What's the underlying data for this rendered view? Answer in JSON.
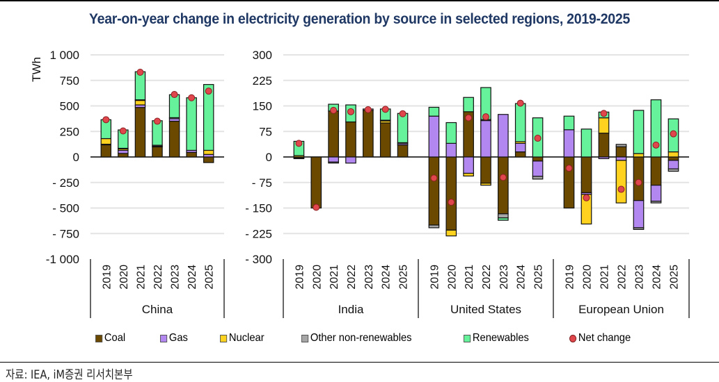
{
  "title": "Year-on-year change in electricity generation by source in selected regions, 2019-2025",
  "source": "자료: IEA, iM증권 리서치본부",
  "colors": {
    "Coal": "#6b4a00",
    "Gas": "#b387f0",
    "Nuclear": "#ffd21f",
    "Other non-renewables": "#a6a6a6",
    "Renewables": "#66f29a",
    "Net change": "#e0474c",
    "title": "#1f3864"
  },
  "legend": [
    {
      "label": "Coal",
      "key": "Coal",
      "shape": "square"
    },
    {
      "label": "Gas",
      "key": "Gas",
      "shape": "square"
    },
    {
      "label": "Nuclear",
      "key": "Nuclear",
      "shape": "square"
    },
    {
      "label": "Other non-renewables",
      "key": "Other non-renewables",
      "shape": "square"
    },
    {
      "label": "Renewables",
      "key": "Renewables",
      "shape": "square"
    },
    {
      "label": "Net change",
      "key": "Net change",
      "shape": "dot"
    }
  ],
  "chart_data": [
    {
      "type": "bar",
      "stacked": true,
      "panel": "left",
      "ylabel": "TWh",
      "ylim": [
        -1000,
        1000
      ],
      "yticks": [
        1000,
        750,
        500,
        250,
        0,
        -250,
        -500,
        -750,
        -1000
      ],
      "ytick_labels": [
        "1 000",
        "750",
        "500",
        "250",
        "0",
        "- 250",
        "- 500",
        "- 750",
        "-1 000"
      ],
      "grid": true,
      "groups": [
        {
          "name": "China",
          "categories": [
            "2019",
            "2020",
            "2021",
            "2022",
            "2023",
            "2024",
            "2025"
          ],
          "series": [
            {
              "name": "Coal",
              "values": [
                120,
                35,
                485,
                100,
                350,
                45,
                -55
              ]
            },
            {
              "name": "Gas",
              "values": [
                5,
                30,
                25,
                5,
                25,
                20,
                25
              ]
            },
            {
              "name": "Nuclear",
              "values": [
                55,
                15,
                45,
                0,
                0,
                0,
                40
              ]
            },
            {
              "name": "Other non-renewables",
              "values": [
                0,
                5,
                5,
                10,
                10,
                0,
                0
              ]
            },
            {
              "name": "Renewables",
              "values": [
                185,
                180,
                275,
                240,
                225,
                515,
                645
              ]
            }
          ],
          "net_change": [
            365,
            255,
            830,
            350,
            612,
            580,
            645
          ]
        }
      ]
    },
    {
      "type": "bar",
      "stacked": true,
      "panel": "right",
      "ylim": [
        -300,
        300
      ],
      "yticks": [
        300,
        225,
        150,
        75,
        0,
        -75,
        -150,
        -225,
        -300
      ],
      "ytick_labels": [
        "300",
        "225",
        "150",
        "75",
        "0",
        "- 75",
        "- 150",
        "- 225",
        "- 300"
      ],
      "grid": true,
      "groups": [
        {
          "name": "India",
          "categories": [
            "2019",
            "2020",
            "2021",
            "2022",
            "2023",
            "2024",
            "2025"
          ],
          "series": [
            {
              "name": "Coal",
              "values": [
                -3,
                -150,
                135,
                103,
                137,
                100,
                35
              ]
            },
            {
              "name": "Gas",
              "values": [
                0,
                0,
                -15,
                -18,
                0,
                0,
                4
              ]
            },
            {
              "name": "Nuclear",
              "values": [
                4,
                0,
                0,
                0,
                0,
                6,
                0
              ]
            },
            {
              "name": "Other non-renewables",
              "values": [
                -2,
                0,
                -3,
                0,
                4,
                2,
                3
              ]
            },
            {
              "name": "Renewables",
              "values": [
                42,
                0,
                20,
                50,
                0,
                33,
                86
              ]
            }
          ],
          "net_change": [
            40,
            -148,
            137,
            133,
            139,
            140,
            127
          ]
        },
        {
          "name": "United States",
          "categories": [
            "2019",
            "2020",
            "2021",
            "2022",
            "2023",
            "2024",
            "2025"
          ],
          "series": [
            {
              "name": "Coal",
              "values": [
                -200,
                -215,
                133,
                -77,
                -167,
                15,
                -12
              ]
            },
            {
              "name": "Gas",
              "values": [
                120,
                40,
                -48,
                107,
                125,
                25,
                -45
              ]
            },
            {
              "name": "Nuclear",
              "values": [
                0,
                -17,
                -8,
                -6,
                0,
                5,
                0
              ]
            },
            {
              "name": "Other non-renewables",
              "values": [
                -8,
                0,
                0,
                3,
                -12,
                0,
                -8
              ]
            },
            {
              "name": "Renewables",
              "values": [
                26,
                61,
                42,
                94,
                -7,
                112,
                115
              ]
            }
          ],
          "net_change": [
            -62,
            -133,
            115,
            118,
            -60,
            158,
            55
          ]
        },
        {
          "name": "European Union",
          "categories": [
            "2019",
            "2020",
            "2021",
            "2022",
            "2023",
            "2024",
            "2025"
          ],
          "series": [
            {
              "name": "Coal",
              "values": [
                -150,
                -105,
                70,
                30,
                -128,
                -83,
                -10
              ]
            },
            {
              "name": "Gas",
              "values": [
                80,
                -5,
                -5,
                -10,
                -80,
                -47,
                -25
              ]
            },
            {
              "name": "Nuclear",
              "values": [
                0,
                -87,
                45,
                -125,
                10,
                0,
                15
              ]
            },
            {
              "name": "Other non-renewables",
              "values": [
                0,
                0,
                0,
                7,
                -5,
                -5,
                -7
              ]
            },
            {
              "name": "Renewables",
              "values": [
                40,
                82,
                17,
                0,
                127,
                168,
                97
              ]
            }
          ],
          "net_change": [
            -33,
            -120,
            128,
            -95,
            -75,
            35,
            68
          ]
        }
      ]
    }
  ]
}
